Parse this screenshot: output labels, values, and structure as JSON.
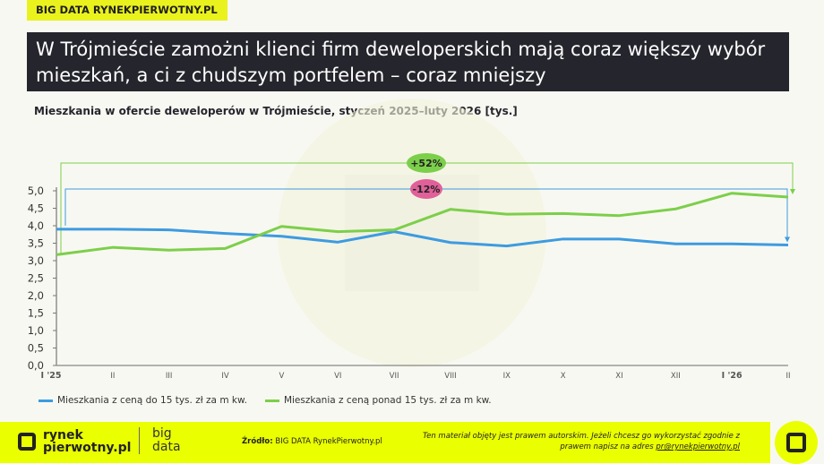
{
  "tag": "BIG DATA RYNEKPIERWOTNY.PL",
  "title": "W Trójmieście zamożni klienci firm deweloperskich mają coraz większy wybór mieszkań, a ci z chudszym portfelem – coraz mniejszy",
  "chart_data": {
    "type": "line",
    "title": "Mieszkania w ofercie deweloperów w Trójmieście, styczeń 2025–luty 2026 [tys.]",
    "categories": [
      "I '25",
      "II",
      "III",
      "IV",
      "V",
      "VI",
      "VII",
      "VIII",
      "IX",
      "X",
      "XI",
      "XII",
      "I '26",
      "II"
    ],
    "yticks": [
      "0,0",
      "0,5",
      "1,0",
      "1,5",
      "2,0",
      "2,5",
      "3,0",
      "3,5",
      "4,0",
      "4,5",
      "5,0"
    ],
    "ylim": [
      0,
      5
    ],
    "grid": false,
    "legend_placement": "bottom",
    "series": [
      {
        "name": "Mieszkania z ceną do 15 tys. zł za m kw.",
        "color": "#3d9be0",
        "values": [
          3.9,
          3.9,
          3.88,
          3.78,
          3.7,
          3.53,
          3.83,
          3.52,
          3.42,
          3.62,
          3.62,
          3.48,
          3.48,
          3.45
        ]
      },
      {
        "name": "Mieszkania z ceną ponad 15 tys. zł za m kw.",
        "color": "#7ccf4a",
        "values": [
          3.17,
          3.38,
          3.3,
          3.35,
          3.98,
          3.83,
          3.88,
          4.47,
          4.33,
          4.35,
          4.29,
          4.48,
          4.93,
          4.82
        ]
      }
    ],
    "annotations": [
      {
        "text": "+52%",
        "color": "#7ccf4a"
      },
      {
        "text": "-12%",
        "color": "#e0609a"
      }
    ]
  },
  "footer": {
    "logo_line1": "rynek",
    "logo_line2": "pierwotny.pl",
    "bd1": "big",
    "bd2": "data",
    "source_label": "Źródło:",
    "source": "BIG DATA RynekPierwotny.pl",
    "copyright": "Ten materiał objęty jest prawem autorskim. Jeżeli chcesz go wykorzystać zgodnie z prawem napisz na adres ",
    "email": "pr@rynekpierwotny.pl"
  }
}
